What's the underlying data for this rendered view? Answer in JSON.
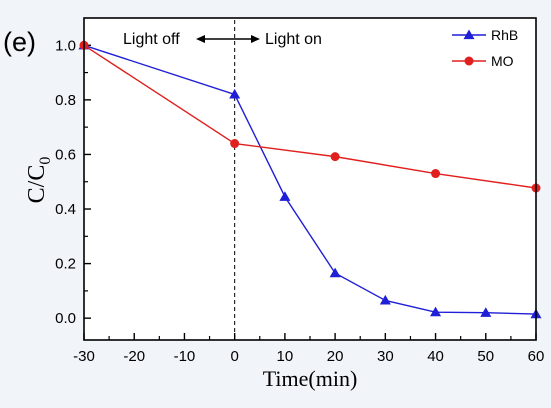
{
  "panel_label": "(e)",
  "annotation": {
    "left": "Light off",
    "right": "Light on"
  },
  "chart_data": {
    "type": "line",
    "xlabel": "Time(min)",
    "ylabel_main": "C/C",
    "ylabel_sub": "0",
    "xlim": [
      -30,
      60
    ],
    "ylim": [
      -0.08,
      1.1
    ],
    "xticks": [
      -30,
      -20,
      -10,
      0,
      10,
      20,
      30,
      40,
      50,
      60
    ],
    "yticks": [
      0.0,
      0.2,
      0.4,
      0.6,
      0.8,
      1.0
    ],
    "ytick_labels": [
      "0.0",
      "0.2",
      "0.4",
      "0.6",
      "0.8",
      "1.0"
    ],
    "vline_x": 0,
    "legend_position": "top-right",
    "series": [
      {
        "name": "RhB",
        "color": "#1f1fd6",
        "marker": "triangle",
        "x": [
          -30,
          0,
          10,
          20,
          30,
          40,
          50,
          60
        ],
        "y": [
          1.0,
          0.82,
          0.445,
          0.165,
          0.065,
          0.022,
          0.02,
          0.015
        ]
      },
      {
        "name": "MO",
        "color": "#e0201e",
        "marker": "circle",
        "x": [
          -30,
          0,
          20,
          40,
          60
        ],
        "y": [
          1.0,
          0.64,
          0.592,
          0.53,
          0.477
        ]
      }
    ]
  }
}
